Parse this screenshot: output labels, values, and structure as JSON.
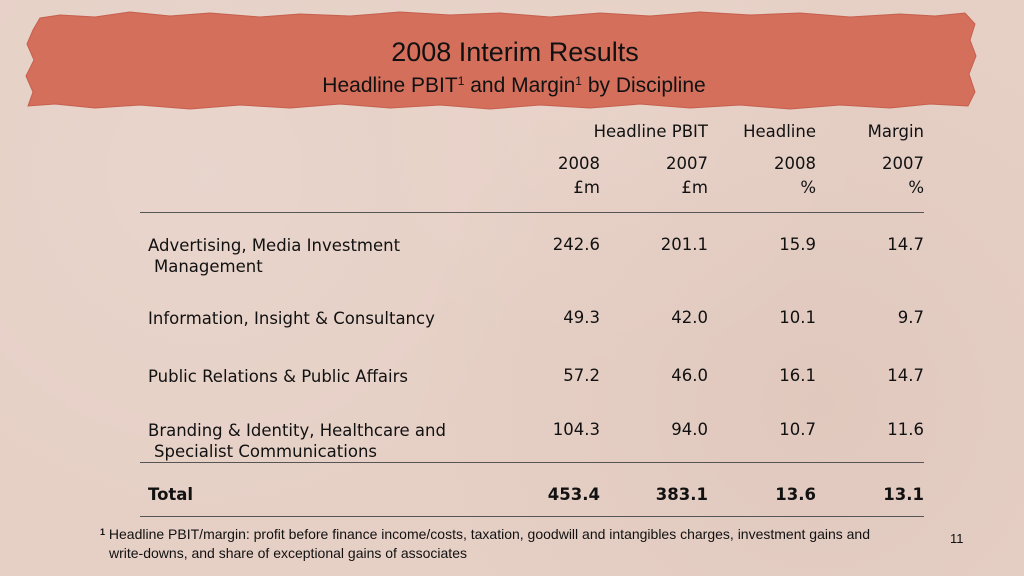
{
  "slide": {
    "title": "2008 Interim Results",
    "subtitle_prefix": "Headline PBIT",
    "subtitle_mid": " and Margin",
    "subtitle_suffix": " by Discipline",
    "superscript": "1"
  },
  "table": {
    "groups": {
      "pbit": "Headline PBIT",
      "margin_a": "Headline",
      "margin_b": "Margin"
    },
    "years": [
      "2008",
      "2007",
      "2008",
      "2007"
    ],
    "units": [
      "£m",
      "£m",
      "%",
      "%"
    ],
    "rows": [
      {
        "label_line1": "Advertising, Media Investment",
        "label_line2": "Management",
        "values": [
          "242.6",
          "201.1",
          "15.9",
          "14.7"
        ]
      },
      {
        "label_line1": "Information, Insight & Consultancy",
        "label_line2": "",
        "values": [
          "49.3",
          "42.0",
          "10.1",
          "9.7"
        ]
      },
      {
        "label_line1": "Public Relations & Public Affairs",
        "label_line2": "",
        "values": [
          "57.2",
          "46.0",
          "16.1",
          "14.7"
        ]
      },
      {
        "label_line1": "Branding & Identity, Healthcare and",
        "label_line2": "Specialist Communications",
        "values": [
          "104.3",
          "94.0",
          "10.7",
          "11.6"
        ]
      }
    ],
    "total": {
      "label": "Total",
      "values": [
        "453.4",
        "383.1",
        "13.6",
        "13.1"
      ]
    }
  },
  "footnote": {
    "marker": "1",
    "line1": "Headline PBIT/margin: profit before finance income/costs, taxation, goodwill and intangibles charges, investment gains and",
    "line2": "write-downs, and share of exceptional gains of associates"
  },
  "page_number": "11",
  "colors": {
    "background": "#e6d0c6",
    "banner": "#d46f5c"
  }
}
